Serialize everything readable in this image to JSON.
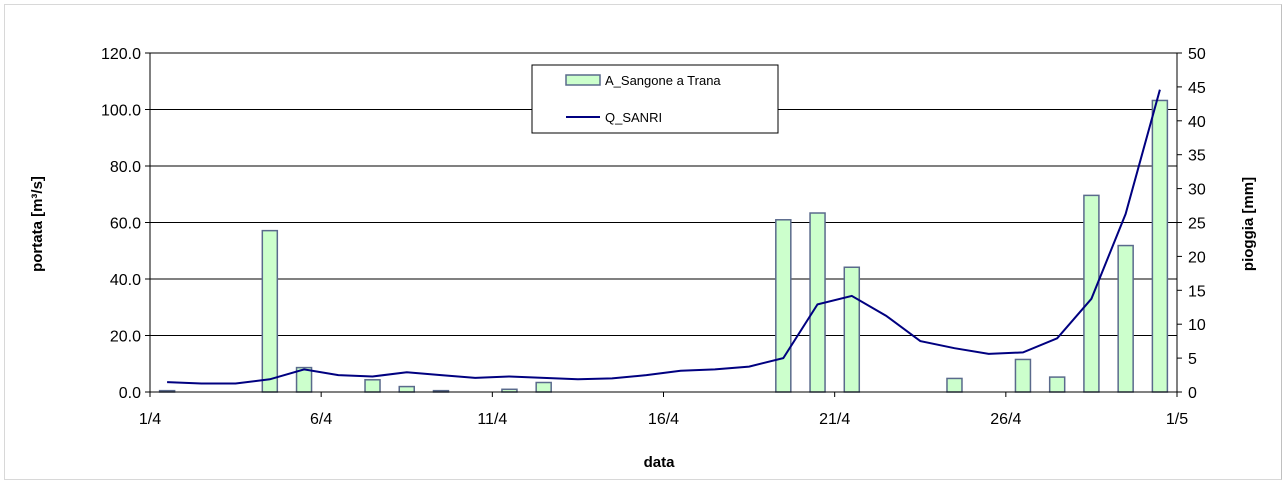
{
  "chart_data": {
    "type": "bar+line",
    "xlabel": "data",
    "ylabel_left": "portata [m³/s]",
    "ylabel_right": "pioggia [mm]",
    "ylim_left": [
      0,
      120
    ],
    "yticks_left": [
      "0.0",
      "20.0",
      "40.0",
      "60.0",
      "80.0",
      "100.0",
      "120.0"
    ],
    "ylim_right": [
      0,
      50
    ],
    "yticks_right": [
      "0",
      "5",
      "10",
      "15",
      "20",
      "25",
      "30",
      "35",
      "40",
      "45",
      "50"
    ],
    "x_tick_labels": [
      "1/4",
      "6/4",
      "11/4",
      "16/4",
      "21/4",
      "26/4",
      "1/5"
    ],
    "grid": "horizontal",
    "legend_position": "top-center",
    "colors": {
      "bar_fill": "#ccffcc",
      "bar_edge": "#5a6a8c",
      "line": "#000080",
      "grid": "#000000"
    },
    "series": [
      {
        "name": "A_Sangone a Trana",
        "kind": "bar",
        "axis": "right",
        "days": [
          "1/4",
          "2/4",
          "3/4",
          "4/4",
          "5/4",
          "6/4",
          "7/4",
          "8/4",
          "9/4",
          "10/4",
          "11/4",
          "12/4",
          "13/4",
          "14/4",
          "15/4",
          "16/4",
          "17/4",
          "18/4",
          "19/4",
          "20/4",
          "21/4",
          "22/4",
          "23/4",
          "24/4",
          "25/4",
          "26/4",
          "27/4",
          "28/4",
          "29/4",
          "30/4"
        ],
        "values": [
          0.2,
          0,
          0,
          23.8,
          3.6,
          0,
          1.8,
          0.8,
          0.2,
          0,
          0.4,
          1.4,
          0,
          0,
          0,
          0,
          0,
          0,
          25.4,
          26.4,
          18.4,
          0,
          0,
          2.0,
          0,
          4.8,
          2.2,
          29.0,
          21.6,
          43.0
        ]
      },
      {
        "name": "Q_SANRI",
        "kind": "line",
        "axis": "left",
        "x": [
          1,
          2,
          3,
          4,
          5,
          6,
          7,
          8,
          9,
          10,
          11,
          12,
          13,
          14,
          15,
          16,
          17,
          18,
          19,
          20,
          21,
          22,
          23,
          24,
          25,
          26,
          27,
          28,
          29,
          30,
          31
        ],
        "values": [
          3.5,
          3.0,
          3.0,
          4.5,
          8.0,
          6.0,
          5.5,
          7.0,
          6.0,
          5.0,
          5.5,
          5.0,
          4.5,
          4.8,
          6.0,
          7.5,
          8.0,
          9.0,
          12.0,
          31.0,
          34.0,
          27.0,
          18.0,
          15.5,
          13.5,
          14.0,
          19.0,
          33.0,
          63.0,
          107.0,
          null
        ]
      }
    ]
  }
}
